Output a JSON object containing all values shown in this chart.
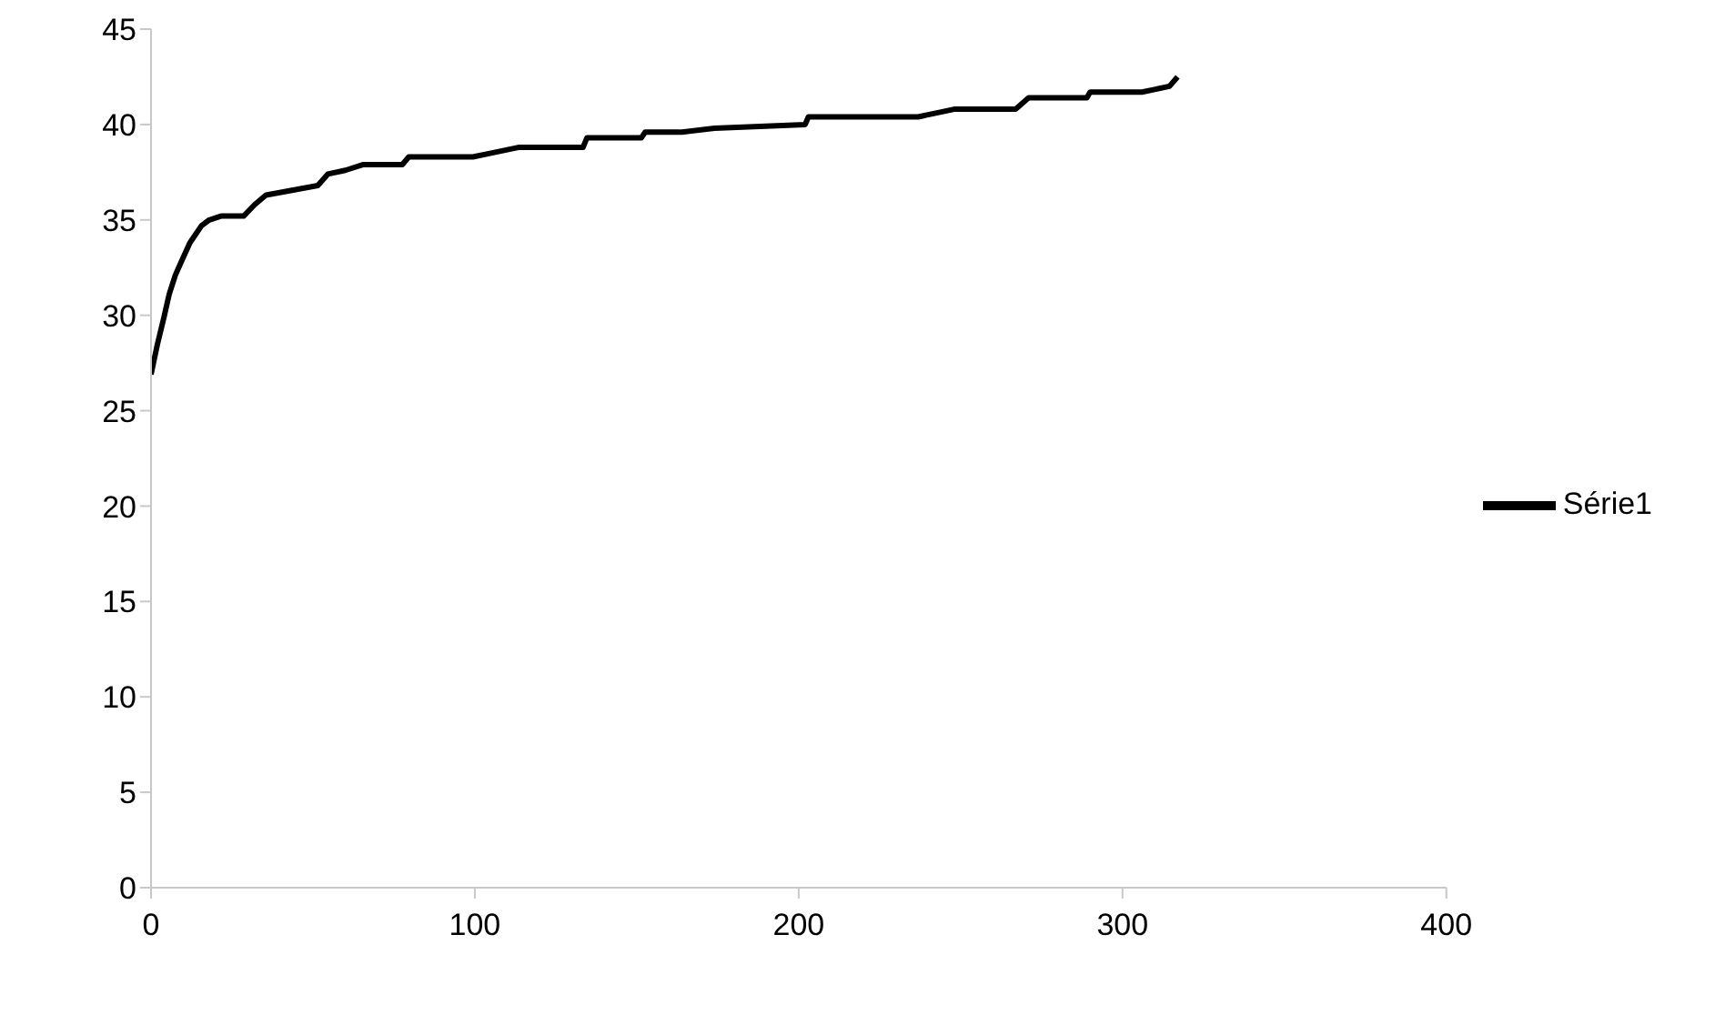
{
  "chart_data": {
    "type": "line",
    "x": [
      0,
      2,
      4,
      5.6,
      7.5,
      9.6,
      12,
      15.6,
      18,
      21.6,
      28.6,
      32,
      35.5,
      42,
      51.5,
      54.6,
      60,
      65.6,
      77.6,
      79.6,
      99.4,
      105,
      113.4,
      133.4,
      134.6,
      151.4,
      152.6,
      164,
      174,
      202,
      203,
      236.9,
      248,
      267,
      271,
      289,
      290,
      306,
      314.5,
      317
    ],
    "series": [
      {
        "name": "Série1",
        "color": "#000000",
        "values": [
          26.9,
          28.5,
          29.9,
          31.1,
          32.1,
          32.9,
          33.8,
          34.7,
          35,
          35.2,
          35.2,
          35.8,
          36.3,
          36.5,
          36.8,
          37.4,
          37.6,
          37.9,
          37.9,
          38.3,
          38.3,
          38.5,
          38.8,
          38.8,
          39.3,
          39.3,
          39.6,
          39.6,
          39.8,
          40,
          40.4,
          40.4,
          40.8,
          40.8,
          41.4,
          41.4,
          41.7,
          41.7,
          42,
          42.5
        ]
      }
    ],
    "xlim": [
      0,
      400
    ],
    "xticks": [
      0,
      100,
      200,
      300,
      400
    ],
    "ylim": [
      0,
      45
    ],
    "yticks": [
      0,
      5,
      10,
      15,
      20,
      25,
      30,
      35,
      40,
      45
    ],
    "grid": false,
    "legend": "right",
    "marker": "none",
    "line_style": "solid"
  }
}
